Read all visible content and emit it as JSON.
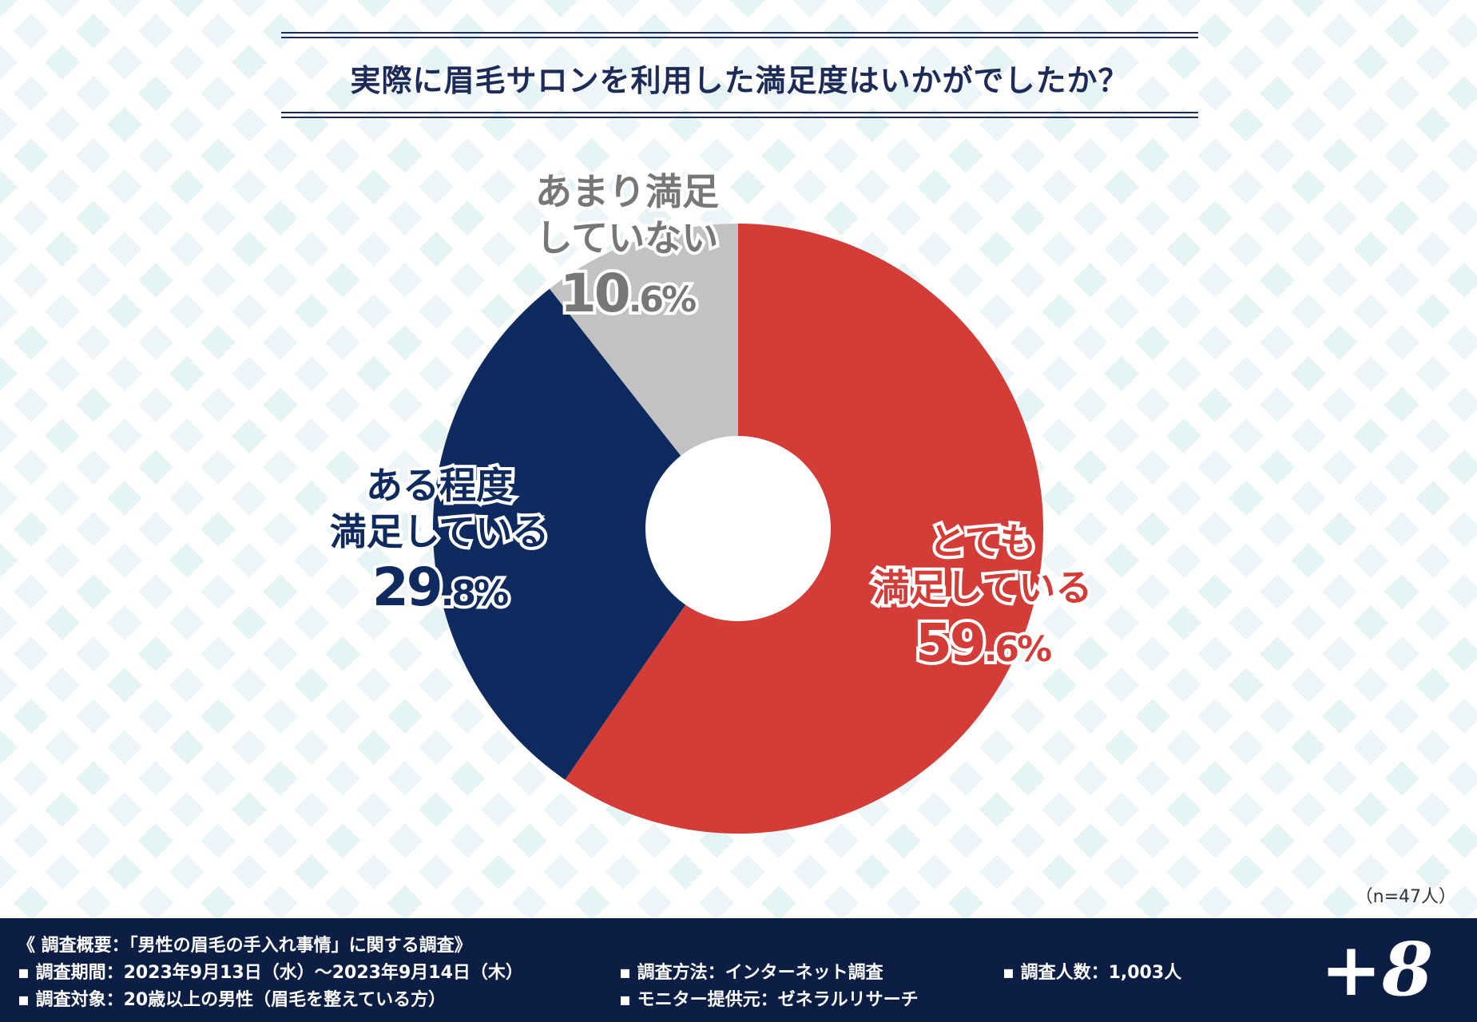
{
  "title": "実際に眉毛サロンを利用した満足度はいかがでしたか？",
  "sample_note": "（n=47人）",
  "chart_data": {
    "type": "pie",
    "title": "実際に眉毛サロンを利用した満足度はいかがでしたか？",
    "donut": true,
    "slices": [
      {
        "label_line1": "とても",
        "label_line2": "満足している",
        "value": 59.6,
        "value_int": "59",
        "value_dec": ".6%",
        "color": "#d43c37"
      },
      {
        "label_line1": "ある程度",
        "label_line2": "満足している",
        "value": 29.8,
        "value_int": "29",
        "value_dec": ".8%",
        "color": "#0e2a5e"
      },
      {
        "label_line1": "あまり満足",
        "label_line2": "していない",
        "value": 10.6,
        "value_int": "10",
        "value_dec": ".6%",
        "color": "#c2c2c2"
      }
    ]
  },
  "footer": {
    "overview": "《 調査概要：「男性の眉毛の手入れ事情」に関する調査》",
    "period": "▪ 調査期間：2023年9月13日（水）～2023年9月14日（木）",
    "target": "▪ 調査対象：20歳以上の男性（眉毛を整えている方）",
    "method": "▪ 調査方法：インターネット調査",
    "provider": "▪ モニター提供元：ゼネラルリサーチ",
    "count": "▪ 調査人数：1,003人",
    "logo": "+8"
  },
  "colors": {
    "navy": "#1c2b57",
    "footer_bg": "#0d1e45",
    "red": "#d43c37",
    "blue": "#0e2a5e",
    "gray": "#c2c2c2",
    "gray_text": "#777777"
  }
}
